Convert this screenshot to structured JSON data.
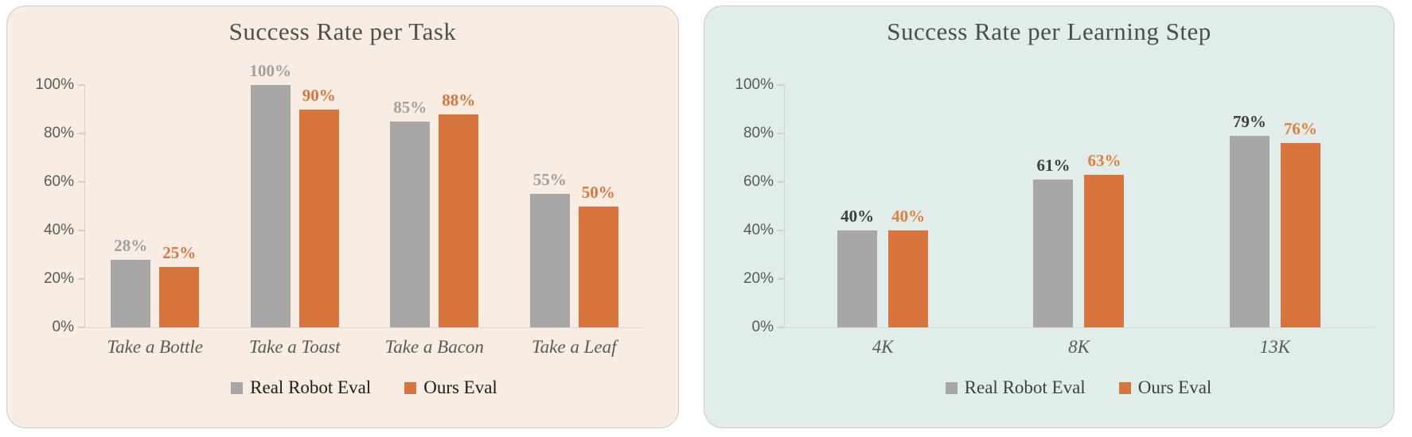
{
  "figure": {
    "background": "#ffffff"
  },
  "chart_data": [
    {
      "id": "success-rate-per-task",
      "type": "bar",
      "title": "Success Rate per Task",
      "title_color": "#4f4f4f",
      "panel_background": "#f9ece2",
      "categories": [
        "Take a Bottle",
        "Take a Toast",
        "Take a Bacon",
        "Take a Leaf"
      ],
      "series": [
        {
          "name": "Real Robot Eval",
          "values": [
            28,
            100,
            85,
            55
          ],
          "labels": [
            "28%",
            "100%",
            "85%",
            "55%"
          ],
          "color": "#a7a7a7",
          "label_color": "#a0a0a0"
        },
        {
          "name": "Ours Eval",
          "values": [
            25,
            90,
            88,
            50
          ],
          "labels": [
            "25%",
            "90%",
            "88%",
            "50%"
          ],
          "color": "#d8753f",
          "label_color": "#d8753f"
        }
      ],
      "yticks": [
        "100%",
        "80%",
        "60%",
        "40%",
        "20%",
        "0%"
      ],
      "ylim": [
        0,
        100
      ],
      "grid": false,
      "legend_position": "bottom",
      "legend_text_color": "#1c1c1c",
      "axis_tick_label_color": "#595959",
      "category_label_color": "#595959"
    },
    {
      "id": "success-rate-per-learning-step",
      "type": "bar",
      "title": "Success Rate per Learning Step",
      "title_color": "#4c4c4c",
      "panel_background": "#e1edeb",
      "categories": [
        "4K",
        "8K",
        "13K"
      ],
      "series": [
        {
          "name": "Real Robot Eval",
          "values": [
            40,
            61,
            79
          ],
          "labels": [
            "40%",
            "61%",
            "79%"
          ],
          "color": "#a7a7a7",
          "label_color": "#3e3e3e"
        },
        {
          "name": "Ours Eval",
          "values": [
            40,
            63,
            76
          ],
          "labels": [
            "40%",
            "63%",
            "76%"
          ],
          "color": "#d8753f",
          "label_color": "#e07f3e"
        }
      ],
      "yticks": [
        "100%",
        "80%",
        "60%",
        "40%",
        "20%",
        "0%"
      ],
      "ylim": [
        0,
        100
      ],
      "grid": false,
      "legend_position": "bottom",
      "legend_text_color": "#3f3f3f",
      "axis_tick_label_color": "#595959",
      "category_label_color": "#595959"
    }
  ]
}
